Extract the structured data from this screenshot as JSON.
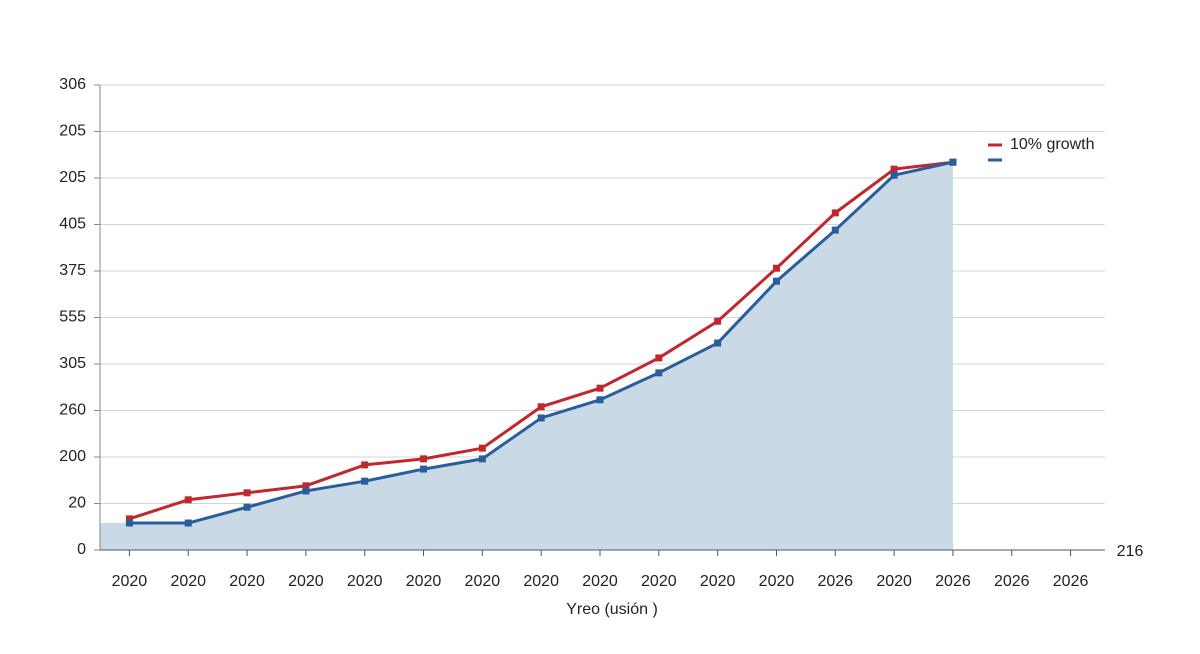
{
  "chart_data": {
    "type": "line",
    "x_label": "Yreo (usión )",
    "annotation": "216",
    "categories": [
      "2020",
      "2020",
      "2020",
      "2020",
      "2020",
      "2020",
      "2020",
      "2020",
      "2020",
      "2020",
      "2020",
      "2020",
      "2026",
      "2020",
      "2026",
      "2026",
      "2026"
    ],
    "series": [
      {
        "name": "10% growth",
        "color": "#c0282d",
        "values": [
          0.67,
          1.08,
          1.23,
          1.38,
          1.83,
          1.96,
          2.19,
          3.08,
          3.48,
          4.13,
          4.92,
          6.06,
          7.25,
          8.19,
          8.34,
          null,
          null
        ]
      },
      {
        "color": "#2a5d9c",
        "fill": "#c9d9e6",
        "values": [
          0.58,
          0.58,
          0.92,
          1.27,
          1.48,
          1.74,
          1.96,
          2.84,
          3.23,
          3.81,
          4.45,
          5.78,
          6.88,
          8.06,
          8.34,
          null,
          null
        ]
      }
    ],
    "ylim": [
      0,
      10
    ],
    "yticks": [
      {
        "value": 0,
        "label": "0"
      },
      {
        "value": 1,
        "label": "20"
      },
      {
        "value": 2,
        "label": "200"
      },
      {
        "value": 3,
        "label": "260"
      },
      {
        "value": 4,
        "label": "305"
      },
      {
        "value": 5,
        "label": "555"
      },
      {
        "value": 6,
        "label": "375"
      },
      {
        "value": 7,
        "label": "405"
      },
      {
        "value": 8,
        "label": "205"
      },
      {
        "value": 9,
        "label": "205"
      },
      {
        "value": 10,
        "label": "306"
      }
    ],
    "grid": true,
    "legend": "upper right"
  }
}
